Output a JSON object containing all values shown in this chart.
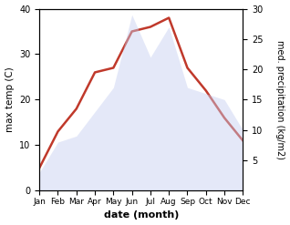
{
  "months": [
    "Jan",
    "Feb",
    "Mar",
    "Apr",
    "May",
    "Jun",
    "Jul",
    "Aug",
    "Sep",
    "Oct",
    "Nov",
    "Dec"
  ],
  "temp_values": [
    5,
    13,
    18,
    26,
    27,
    35,
    36,
    38,
    27,
    22,
    16,
    11
  ],
  "precip_values": [
    3,
    8,
    9,
    13,
    17,
    29,
    22,
    27,
    17,
    16,
    15,
    10
  ],
  "temp_color": "#c0392b",
  "precip_fill_color": "#c5cef0",
  "ylabel_left": "max temp (C)",
  "ylabel_right": "med. precipitation (kg/m2)",
  "xlabel": "date (month)",
  "ylim_left": [
    0,
    40
  ],
  "ylim_right": [
    0,
    30
  ],
  "yticks_left": [
    0,
    10,
    20,
    30,
    40
  ],
  "yticks_right": [
    5,
    10,
    15,
    20,
    25,
    30
  ],
  "bg_color": "#ffffff",
  "temp_linewidth": 1.8,
  "fill_alpha": 0.45
}
